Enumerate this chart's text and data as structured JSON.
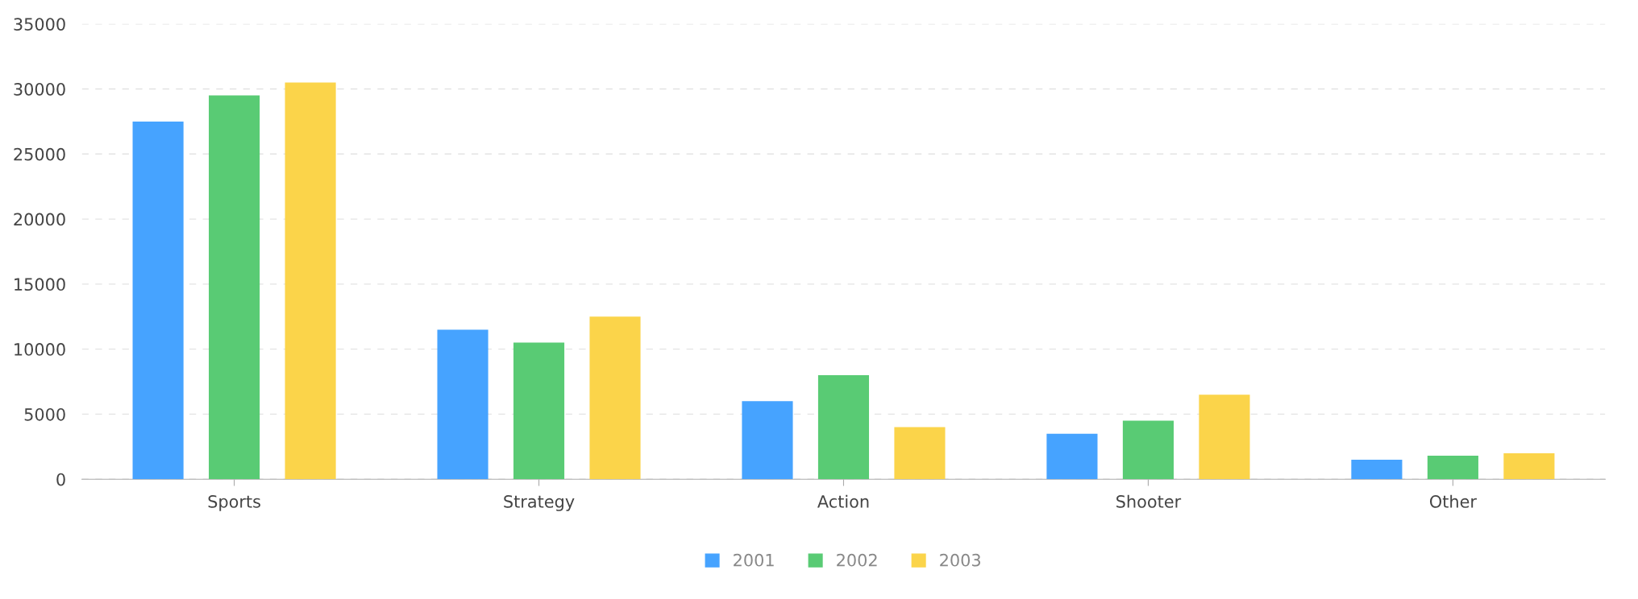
{
  "chart_data": {
    "type": "bar",
    "categories": [
      "Sports",
      "Strategy",
      "Action",
      "Shooter",
      "Other"
    ],
    "series": [
      {
        "name": "2001",
        "color": "#46a3ff",
        "values": [
          27500,
          11500,
          6000,
          3500,
          1500
        ]
      },
      {
        "name": "2002",
        "color": "#59cb74",
        "values": [
          29500,
          10500,
          8000,
          4500,
          1800
        ]
      },
      {
        "name": "2003",
        "color": "#fbd44a",
        "values": [
          30500,
          12500,
          4000,
          6500,
          2000
        ]
      }
    ],
    "ylim": [
      0,
      35000
    ],
    "yticks": [
      0,
      5000,
      10000,
      15000,
      20000,
      25000,
      30000,
      35000
    ],
    "grid": "y",
    "legend": "bottom"
  }
}
